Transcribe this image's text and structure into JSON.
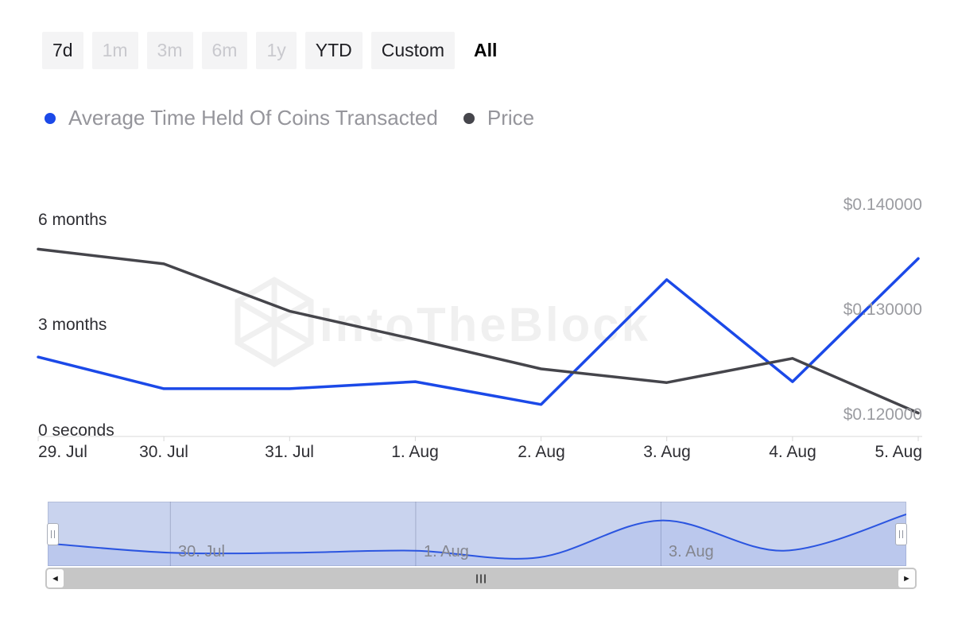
{
  "toolbar": {
    "ranges": [
      {
        "label": "7d",
        "state": "normal"
      },
      {
        "label": "1m",
        "state": "disabled"
      },
      {
        "label": "3m",
        "state": "disabled"
      },
      {
        "label": "6m",
        "state": "disabled"
      },
      {
        "label": "1y",
        "state": "disabled"
      },
      {
        "label": "YTD",
        "state": "normal"
      },
      {
        "label": "Custom",
        "state": "normal"
      },
      {
        "label": "All",
        "state": "active"
      }
    ]
  },
  "legend": {
    "items": [
      {
        "label": "Average Time Held Of Coins Transacted",
        "color": "#1b49e8"
      },
      {
        "label": "Price",
        "color": "#46464c"
      }
    ]
  },
  "chart_data": {
    "type": "line",
    "x": [
      "29. Jul",
      "30. Jul",
      "31. Jul",
      "1. Aug",
      "2. Aug",
      "3. Aug",
      "4. Aug",
      "5. Aug"
    ],
    "series": [
      {
        "name": "Average Time Held Of Coins Transacted",
        "axis": "left",
        "unit": "months",
        "color": "#1b49e8",
        "values": [
          2.1,
          1.2,
          1.2,
          1.4,
          0.75,
          4.3,
          1.4,
          4.9
        ]
      },
      {
        "name": "Price",
        "axis": "right",
        "unit": "USD",
        "color": "#45454b",
        "values": [
          0.1358,
          0.1344,
          0.1299,
          0.1272,
          0.1244,
          0.1231,
          0.1254,
          0.1202
        ]
      }
    ],
    "left_axis": {
      "min": 0,
      "max": 6.6,
      "ticks": [
        {
          "value": 6,
          "label": "6 months"
        },
        {
          "value": 3,
          "label": "3 months"
        },
        {
          "value": 0,
          "label": "0 seconds"
        }
      ]
    },
    "right_axis": {
      "min": 0.1185,
      "max": 0.1406,
      "ticks": [
        {
          "value": 0.14,
          "label": "$0.140000"
        },
        {
          "value": 0.13,
          "label": "$0.130000"
        },
        {
          "value": 0.12,
          "label": "$0.120000"
        }
      ]
    },
    "grid": false,
    "legend_position": "top-left",
    "watermark": "IntoTheBlock"
  },
  "navigator": {
    "range": [
      0,
      5.5
    ],
    "labels": [
      {
        "index": 1,
        "label": "30. Jul"
      },
      {
        "index": 3,
        "label": "1. Aug"
      },
      {
        "index": 5,
        "label": "3. Aug"
      }
    ]
  },
  "scrollbar": {
    "left_arrow": "◄",
    "right_arrow": "►",
    "grip": "III"
  }
}
